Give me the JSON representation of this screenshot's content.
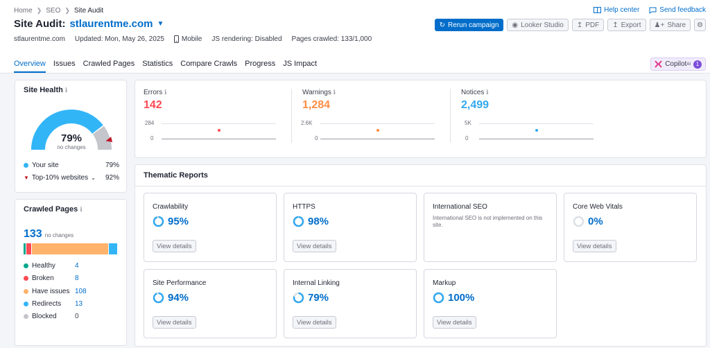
{
  "breadcrumb": [
    "Home",
    "SEO",
    "Site Audit"
  ],
  "top_links": {
    "help": "Help center",
    "feedback": "Send feedback"
  },
  "title": {
    "prefix": "Site Audit:",
    "domain": "stlaurentme.com"
  },
  "meta": {
    "domain": "stlaurentme.com",
    "updated": "Updated: Mon, May 26, 2025",
    "device": "Mobile",
    "js": "JS rendering: Disabled",
    "crawled": "Pages crawled: 133/1,000"
  },
  "actions": {
    "rerun": "Rerun campaign",
    "looker": "Looker Studio",
    "pdf": "PDF",
    "export": "Export",
    "share": "Share"
  },
  "tabs": [
    "Overview",
    "Issues",
    "Crawled Pages",
    "Statistics",
    "Compare Crawls",
    "Progress",
    "JS Impact"
  ],
  "copilot": {
    "label": "Copilot",
    "sup": "AI",
    "count": "1"
  },
  "site_health": {
    "title": "Site Health",
    "percent": "79%",
    "change": "no changes",
    "value": 0.79,
    "your_site_label": "Your site",
    "your_site_value": "79%",
    "top_label": "Top-10% websites",
    "top_value": "92%",
    "top_fraction": 0.92
  },
  "crawled_pages": {
    "title": "Crawled Pages",
    "total": "133",
    "change": "no changes",
    "rows": [
      {
        "label": "Healthy",
        "value": "4",
        "color": "#00a88e"
      },
      {
        "label": "Broken",
        "value": "8",
        "color": "#ff4953"
      },
      {
        "label": "Have issues",
        "value": "108",
        "color": "#ffb26b"
      },
      {
        "label": "Redirects",
        "value": "13",
        "color": "#32b5f7"
      },
      {
        "label": "Blocked",
        "value": "0",
        "color": "#c4c6cc"
      }
    ]
  },
  "metrics": [
    {
      "label": "Errors",
      "value": "142",
      "color": "#ff4953",
      "ytop": "284",
      "ybottom": "0"
    },
    {
      "label": "Warnings",
      "value": "1,284",
      "color": "#ff8c43",
      "ytop": "2.6K",
      "ybottom": "0"
    },
    {
      "label": "Notices",
      "value": "2,499",
      "color": "#32a8ef",
      "ytop": "5K",
      "ybottom": "0"
    }
  ],
  "thematic": {
    "title": "Thematic Reports",
    "view_details": "View details",
    "reports": [
      {
        "name": "Crawlability",
        "pct": "95%",
        "fraction": 0.95
      },
      {
        "name": "HTTPS",
        "pct": "98%",
        "fraction": 0.98
      },
      {
        "name": "International SEO",
        "pct": "",
        "note": "International SEO is not implemented on this site."
      },
      {
        "name": "Core Web Vitals",
        "pct": "0%",
        "fraction": 0
      },
      {
        "name": "Site Performance",
        "pct": "94%",
        "fraction": 0.94
      },
      {
        "name": "Internal Linking",
        "pct": "79%",
        "fraction": 0.79
      },
      {
        "name": "Markup",
        "pct": "100%",
        "fraction": 1
      }
    ]
  },
  "colors": {
    "accent": "#006dca",
    "gauge": "#32b5f7",
    "gauge_rest": "#c4c6cc",
    "marker": "#c0182a"
  }
}
